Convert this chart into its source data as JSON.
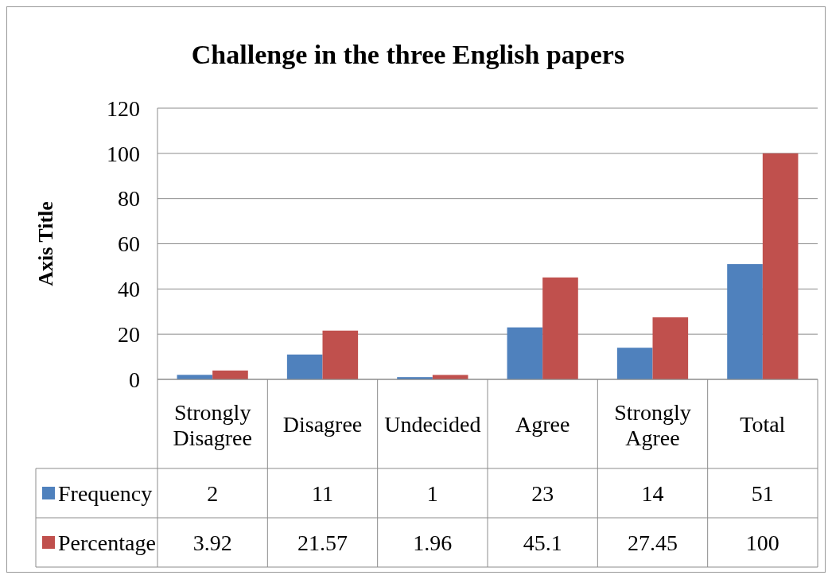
{
  "chart_data": {
    "type": "bar",
    "title": "Challenge in the three English papers",
    "ylabel": "Axis Title",
    "categories": [
      "Strongly Disagree",
      "Disagree",
      "Undecided",
      "Agree",
      "Strongly Agree",
      "Total"
    ],
    "series": [
      {
        "name": "Frequency",
        "color": "#4f81bd",
        "values": [
          2,
          11,
          1,
          23,
          14,
          51
        ]
      },
      {
        "name": "Percentage",
        "color": "#c0504d",
        "values": [
          3.92,
          21.57,
          1.96,
          45.1,
          27.45,
          100
        ]
      }
    ],
    "ylim": [
      0,
      120
    ],
    "yticks": [
      0,
      20,
      40,
      60,
      80,
      100,
      120
    ],
    "grid": "y",
    "legend": "bottom",
    "data_labels": true
  }
}
